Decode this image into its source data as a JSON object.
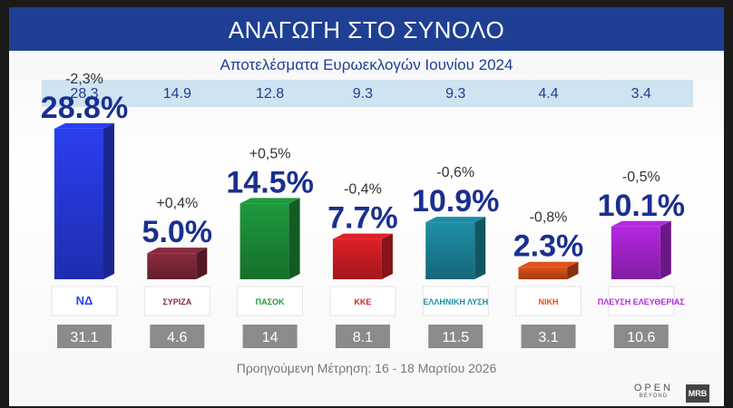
{
  "header": {
    "title": "ΑΝΑΓΩΓΗ ΣΤΟ ΣΥΝΟΛΟ",
    "subtitle": "Αποτελέσματα Ευρωεκλογών Ιουνίου 2024"
  },
  "footer": {
    "note": "Προηγούμενη Μέτρηση: 16 - 18 Μαρτίου 2026",
    "brand_open": "OPEN",
    "brand_open_sub": "BEYOND",
    "brand_mrb": "MRB"
  },
  "chart_data": {
    "type": "bar",
    "categories": [
      "ΝΔ",
      "ΣΥΡΙΖΑ",
      "ΠΑΣΟΚ",
      "ΚΚΕ",
      "ΕΛΛΗΝΙΚΗ ΛΥΣΗ",
      "ΝΙΚΗ",
      "ΠΛΕΥΣΗ ΕΛΕΥΘΕΡΙΑΣ"
    ],
    "logo_text": [
      "ΝΔ",
      "ΣΥΡΙΖΑ",
      "ΠΑΣΟΚ",
      "ΚΚΕ",
      "ΕΛΛΗΝΙΚΗ ΛΥΣΗ",
      "ΝΙΚΗ",
      "ΠΛΕΥΣΗ ΕΛΕΥΘΕΡΙΑΣ"
    ],
    "values": [
      28.8,
      5.0,
      14.5,
      7.7,
      10.9,
      2.3,
      10.1
    ],
    "value_labels": [
      "28.8%",
      "5.0%",
      "14.5%",
      "7.7%",
      "10.9%",
      "2.3%",
      "10.1%"
    ],
    "change_labels": [
      "-2,3%",
      "+0,4%",
      "+0,5%",
      "-0,4%",
      "-0,6%",
      "-0,8%",
      "-0,5%"
    ],
    "euro_2024_labels": [
      "28.3",
      "14.9",
      "12.8",
      "9.3",
      "9.3",
      "4.4",
      "3.4"
    ],
    "previous_labels": [
      "31.1",
      "4.6",
      "14",
      "8.1",
      "11.5",
      "3.1",
      "10.6"
    ],
    "colors": [
      "#2a3ff0",
      "#8a2a3e",
      "#1e9a3c",
      "#e02027",
      "#1e8fa6",
      "#e0521a",
      "#b427e0"
    ],
    "ylim": [
      0,
      30
    ]
  }
}
